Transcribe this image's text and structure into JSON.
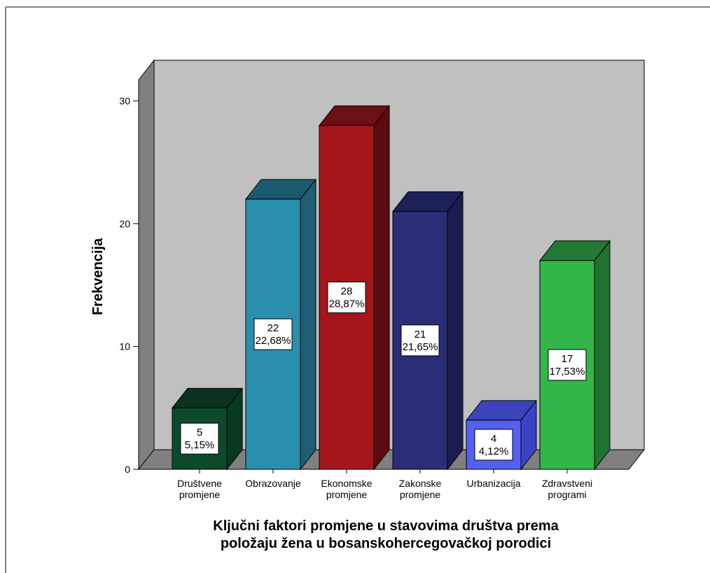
{
  "chart_data": {
    "type": "bar",
    "style": "3d",
    "categories": [
      [
        "Društvene",
        "promjene"
      ],
      [
        "Obrazovanje"
      ],
      [
        "Ekonomske",
        "promjene"
      ],
      [
        "Zakonske",
        "promjene"
      ],
      [
        "Urbanizacija"
      ],
      [
        "Zdravstveni",
        "programi"
      ]
    ],
    "values": [
      5,
      22,
      28,
      21,
      4,
      17
    ],
    "percent_labels": [
      "5,15%",
      "22,68%",
      "28,87%",
      "21,65%",
      "4,12%",
      "17,53%"
    ],
    "ylabel": "Frekvencija",
    "xlabel": [
      "Ključni faktori promjene u stavovima društva prema",
      "položaju žena u bosanskohercegovačkoj porodici"
    ],
    "yticks": [
      0,
      10,
      20,
      30
    ],
    "ylim": [
      0,
      30
    ],
    "grid": false,
    "legend": "none",
    "colors": [
      {
        "front": "#0d4a2b",
        "side": "#083a20",
        "top": "#0a3320"
      },
      {
        "front": "#2a8fad",
        "side": "#1f5e73",
        "top": "#1c5a70"
      },
      {
        "front": "#a5161b",
        "side": "#5e0b0f",
        "top": "#6b1015"
      },
      {
        "front": "#2a2e77",
        "side": "#1a1d4d",
        "top": "#1e2158"
      },
      {
        "front": "#5460f2",
        "side": "#3a43c6",
        "top": "#3b44b8"
      },
      {
        "front": "#33b54a",
        "side": "#1f7330",
        "top": "#237a35"
      }
    ],
    "wall_color": "#c0c0c0",
    "floor_color": "#808080"
  }
}
